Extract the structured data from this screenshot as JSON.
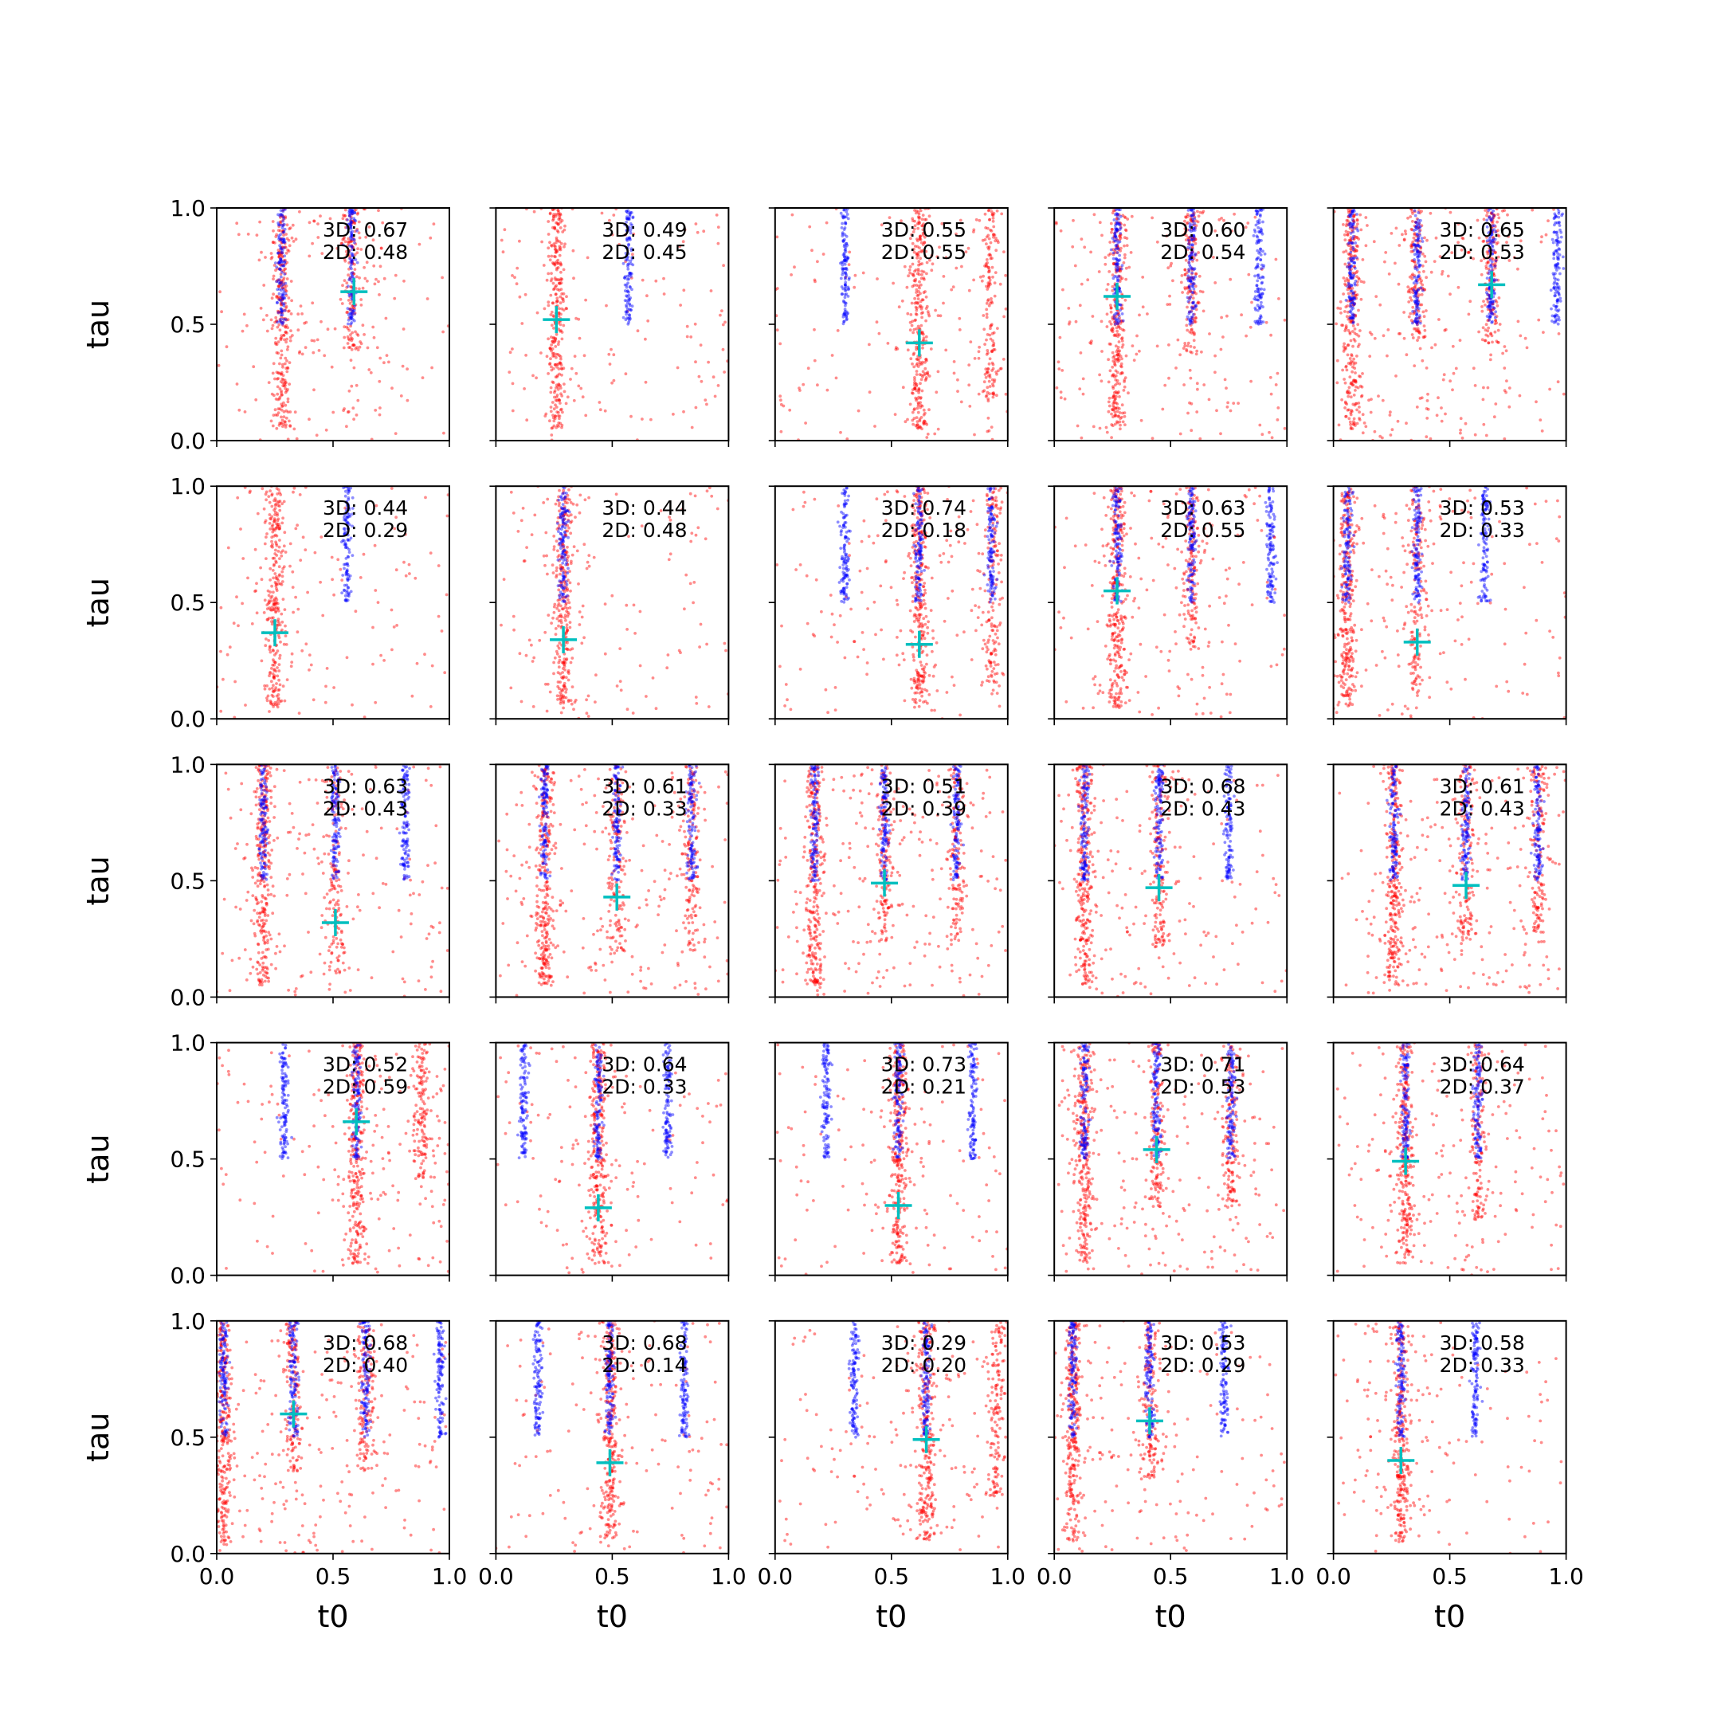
{
  "chart_data": {
    "type": "scatter",
    "layout": {
      "rows": 5,
      "cols": 5
    },
    "xlabel": "t0",
    "ylabel": "tau",
    "xlim": [
      0.0,
      1.0
    ],
    "ylim": [
      0.0,
      1.0
    ],
    "x_ticks": [
      0.0,
      0.5,
      1.0
    ],
    "y_ticks": [
      0.0,
      0.5,
      1.0
    ],
    "x_tick_labels": [
      "0.0",
      "0.5",
      "1.0"
    ],
    "y_tick_labels": [
      "0.0",
      "0.5",
      "1.0"
    ],
    "grid": false,
    "colors": {
      "series_a": "#ff0000",
      "series_b": "#0000ff",
      "marker": "#00bfbf"
    },
    "series": [
      {
        "color": "#0000ff",
        "description": "narrow vertical clusters near t0 positions"
      },
      {
        "color": "#ff0000",
        "description": "broad scattered points"
      }
    ],
    "panels": [
      {
        "label_3d": "3D: 0.67",
        "label_2d": "2D: 0.48",
        "marker": [
          0.59,
          0.64
        ],
        "blue_t0": [
          0.28,
          0.58
        ],
        "red_t0": [
          0.28,
          0.58
        ]
      },
      {
        "label_3d": "3D: 0.49",
        "label_2d": "2D: 0.45",
        "marker": [
          0.26,
          0.52
        ],
        "blue_t0": [
          0.57
        ],
        "red_t0": [
          0.26
        ]
      },
      {
        "label_3d": "3D: 0.55",
        "label_2d": "2D: 0.55",
        "marker": [
          0.62,
          0.42
        ],
        "blue_t0": [
          0.3
        ],
        "red_t0": [
          0.62,
          0.92
        ]
      },
      {
        "label_3d": "3D: 0.60",
        "label_2d": "2D: 0.54",
        "marker": [
          0.27,
          0.62
        ],
        "blue_t0": [
          0.27,
          0.59,
          0.88
        ],
        "red_t0": [
          0.27,
          0.59
        ]
      },
      {
        "label_3d": "3D: 0.65",
        "label_2d": "2D: 0.53",
        "marker": [
          0.68,
          0.67
        ],
        "blue_t0": [
          0.08,
          0.36,
          0.68,
          0.96
        ],
        "red_t0": [
          0.08,
          0.36,
          0.68
        ]
      },
      {
        "label_3d": "3D: 0.44",
        "label_2d": "2D: 0.29",
        "marker": [
          0.25,
          0.37
        ],
        "blue_t0": [
          0.56
        ],
        "red_t0": [
          0.25
        ]
      },
      {
        "label_3d": "3D: 0.44",
        "label_2d": "2D: 0.48",
        "marker": [
          0.29,
          0.34
        ],
        "blue_t0": [
          0.29
        ],
        "red_t0": [
          0.29
        ]
      },
      {
        "label_3d": "3D: 0.74",
        "label_2d": "2D: 0.18",
        "marker": [
          0.62,
          0.32
        ],
        "blue_t0": [
          0.3,
          0.62,
          0.93
        ],
        "red_t0": [
          0.62,
          0.93
        ]
      },
      {
        "label_3d": "3D: 0.63",
        "label_2d": "2D: 0.55",
        "marker": [
          0.27,
          0.55
        ],
        "blue_t0": [
          0.27,
          0.59,
          0.93
        ],
        "red_t0": [
          0.27,
          0.59
        ]
      },
      {
        "label_3d": "3D: 0.53",
        "label_2d": "2D: 0.33",
        "marker": [
          0.36,
          0.33
        ],
        "blue_t0": [
          0.06,
          0.36,
          0.65
        ],
        "red_t0": [
          0.06,
          0.36
        ]
      },
      {
        "label_3d": "3D: 0.63",
        "label_2d": "2D: 0.43",
        "marker": [
          0.51,
          0.32
        ],
        "blue_t0": [
          0.2,
          0.51,
          0.81
        ],
        "red_t0": [
          0.2,
          0.51
        ]
      },
      {
        "label_3d": "3D: 0.61",
        "label_2d": "2D: 0.33",
        "marker": [
          0.52,
          0.43
        ],
        "blue_t0": [
          0.21,
          0.52,
          0.84
        ],
        "red_t0": [
          0.21,
          0.52,
          0.84
        ]
      },
      {
        "label_3d": "3D: 0.51",
        "label_2d": "2D: 0.39",
        "marker": [
          0.47,
          0.49
        ],
        "blue_t0": [
          0.17,
          0.47,
          0.78
        ],
        "red_t0": [
          0.17,
          0.47,
          0.78
        ]
      },
      {
        "label_3d": "3D: 0.68",
        "label_2d": "2D: 0.43",
        "marker": [
          0.45,
          0.47
        ],
        "blue_t0": [
          0.13,
          0.45,
          0.75
        ],
        "red_t0": [
          0.13,
          0.45
        ]
      },
      {
        "label_3d": "3D: 0.61",
        "label_2d": "2D: 0.43",
        "marker": [
          0.57,
          0.48
        ],
        "blue_t0": [
          0.26,
          0.57,
          0.88
        ],
        "red_t0": [
          0.26,
          0.57,
          0.88
        ]
      },
      {
        "label_3d": "3D: 0.52",
        "label_2d": "2D: 0.59",
        "marker": [
          0.6,
          0.66
        ],
        "blue_t0": [
          0.29,
          0.6
        ],
        "red_t0": [
          0.6,
          0.88
        ]
      },
      {
        "label_3d": "3D: 0.64",
        "label_2d": "2D: 0.33",
        "marker": [
          0.44,
          0.29
        ],
        "blue_t0": [
          0.12,
          0.44,
          0.74
        ],
        "red_t0": [
          0.44
        ]
      },
      {
        "label_3d": "3D: 0.73",
        "label_2d": "2D: 0.21",
        "marker": [
          0.53,
          0.3
        ],
        "blue_t0": [
          0.22,
          0.53,
          0.85
        ],
        "red_t0": [
          0.53
        ]
      },
      {
        "label_3d": "3D: 0.71",
        "label_2d": "2D: 0.53",
        "marker": [
          0.44,
          0.54
        ],
        "blue_t0": [
          0.13,
          0.44,
          0.76
        ],
        "red_t0": [
          0.13,
          0.44,
          0.76
        ]
      },
      {
        "label_3d": "3D: 0.64",
        "label_2d": "2D: 0.37",
        "marker": [
          0.31,
          0.49
        ],
        "blue_t0": [
          0.31,
          0.62
        ],
        "red_t0": [
          0.31,
          0.62
        ]
      },
      {
        "label_3d": "3D: 0.68",
        "label_2d": "2D: 0.40",
        "marker": [
          0.33,
          0.6
        ],
        "blue_t0": [
          0.03,
          0.33,
          0.64,
          0.96
        ],
        "red_t0": [
          0.03,
          0.33,
          0.64
        ]
      },
      {
        "label_3d": "3D: 0.68",
        "label_2d": "2D: 0.14",
        "marker": [
          0.49,
          0.39
        ],
        "blue_t0": [
          0.18,
          0.49,
          0.81
        ],
        "red_t0": [
          0.49
        ]
      },
      {
        "label_3d": "3D: 0.29",
        "label_2d": "2D: 0.20",
        "marker": [
          0.65,
          0.49
        ],
        "blue_t0": [
          0.34,
          0.65
        ],
        "red_t0": [
          0.65,
          0.95
        ]
      },
      {
        "label_3d": "3D: 0.53",
        "label_2d": "2D: 0.29",
        "marker": [
          0.41,
          0.57
        ],
        "blue_t0": [
          0.08,
          0.41,
          0.73
        ],
        "red_t0": [
          0.08,
          0.41
        ]
      },
      {
        "label_3d": "3D: 0.58",
        "label_2d": "2D: 0.33",
        "marker": [
          0.29,
          0.4
        ],
        "blue_t0": [
          0.29,
          0.61
        ],
        "red_t0": [
          0.29
        ]
      }
    ]
  }
}
